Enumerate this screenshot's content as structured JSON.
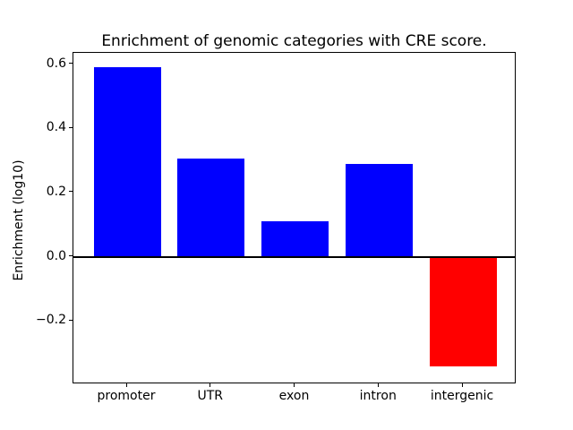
{
  "chart_data": {
    "type": "bar",
    "title": "Enrichment of genomic categories with CRE score.",
    "xlabel": "",
    "ylabel": "Enrichment (log10)",
    "categories": [
      "promoter",
      "UTR",
      "exon",
      "intron",
      "intergenic"
    ],
    "values": [
      0.59,
      0.305,
      0.11,
      0.29,
      -0.34
    ],
    "bar_colors": [
      "#0000ff",
      "#0000ff",
      "#0000ff",
      "#0000ff",
      "#ff0000"
    ],
    "positive_color": "#0000ff",
    "negative_color": "#ff0000",
    "bar_width_fraction": 0.8,
    "xlim": [
      -0.64,
      4.64
    ],
    "ylim": [
      -0.397,
      0.635
    ],
    "yticks": [
      {
        "value": 0.6,
        "label": "0.6"
      },
      {
        "value": 0.4,
        "label": "0.4"
      },
      {
        "value": 0.2,
        "label": "0.2"
      },
      {
        "value": 0.0,
        "label": "0.0"
      },
      {
        "value": -0.2,
        "label": "−0.2"
      }
    ],
    "zero_line": {
      "value": 0,
      "color": "#000000",
      "thickness": 2
    },
    "grid": false,
    "legend_position": "none",
    "frame_color": "#000000",
    "background_color": "#ffffff"
  }
}
